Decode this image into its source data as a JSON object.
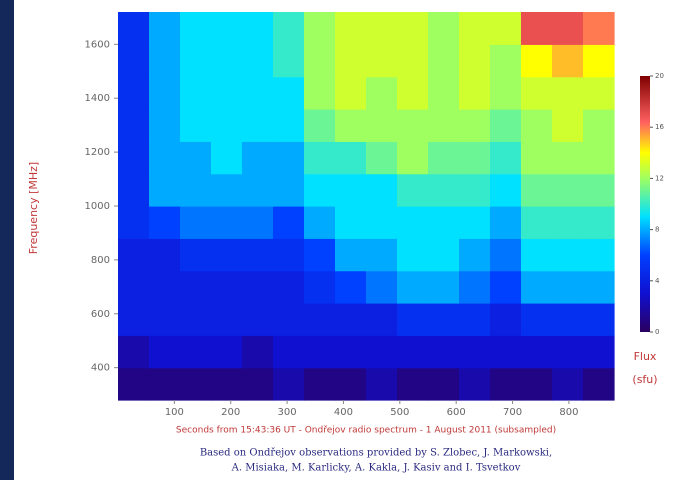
{
  "chart_data": {
    "type": "heatmap",
    "ylabel": "Frequency [MHz]",
    "xlabel": "Seconds from 15:43:36 UT  -  Ondřejov radio spectrum  -  1 August 2011 (subsampled)",
    "caption": [
      "Based on Ondřejov observations provided by S. Zlobec, J. Markowski,",
      "A. Misiaka, M. Karlicky, A. Kakla, J. Kasiv and I. Tsvetkov"
    ],
    "zlabel": [
      "Flux",
      "(sfu)"
    ],
    "x": [
      27.5,
      82.5,
      137.5,
      192.5,
      247.5,
      302.5,
      357.5,
      412.5,
      467.5,
      522.5,
      577.5,
      632.5,
      687.5,
      742.5,
      797.5,
      852.5
    ],
    "y": [
      340,
      460,
      580,
      700,
      820,
      940,
      1060,
      1180,
      1300,
      1420,
      1540,
      1660
    ],
    "z": [
      [
        1,
        1,
        1,
        1,
        1,
        2,
        1,
        1,
        2,
        1,
        1,
        2,
        1,
        1,
        2,
        1
      ],
      [
        2,
        3,
        3,
        3,
        2,
        3,
        3,
        3,
        3,
        3,
        3,
        3,
        3,
        3,
        3,
        3
      ],
      [
        4,
        4,
        4,
        4,
        4,
        4,
        4,
        4,
        4,
        5,
        5,
        5,
        4,
        5,
        5,
        5
      ],
      [
        4,
        4,
        4,
        4,
        4,
        4,
        5,
        6,
        7,
        8,
        8,
        7,
        6,
        8,
        8,
        8
      ],
      [
        4,
        4,
        5,
        5,
        5,
        5,
        6,
        8,
        8,
        9,
        9,
        8,
        7,
        9,
        9,
        9
      ],
      [
        5,
        6,
        7,
        7,
        7,
        6,
        8,
        9,
        9,
        9,
        9,
        9,
        8,
        10,
        10,
        10
      ],
      [
        5,
        8,
        8,
        8,
        8,
        8,
        9,
        9,
        9,
        10,
        10,
        10,
        9,
        11,
        11,
        11
      ],
      [
        5,
        8,
        8,
        9,
        8,
        8,
        10,
        10,
        11,
        12,
        11,
        11,
        10,
        12,
        12,
        12
      ],
      [
        5,
        8,
        9,
        9,
        9,
        9,
        11,
        12,
        12,
        12,
        12,
        12,
        11,
        12,
        13,
        12
      ],
      [
        5,
        8,
        9,
        9,
        9,
        9,
        12,
        13,
        12,
        13,
        12,
        13,
        12,
        13,
        13,
        13
      ],
      [
        5,
        8,
        9,
        9,
        9,
        10,
        12,
        13,
        13,
        13,
        12,
        13,
        12,
        14,
        15,
        14
      ],
      [
        5,
        8,
        9,
        9,
        9,
        10,
        12,
        13,
        13,
        13,
        12,
        13,
        13,
        17,
        17,
        16
      ]
    ],
    "xlim": [
      0,
      880
    ],
    "ylim": [
      280,
      1720
    ],
    "zlim": [
      0,
      20
    ],
    "xticks": [
      100,
      200,
      300,
      400,
      500,
      600,
      700,
      800
    ],
    "yticks": [
      400,
      600,
      800,
      1000,
      1200,
      1400,
      1600
    ],
    "zticks": [
      0,
      4,
      8,
      12,
      16,
      20
    ],
    "colorscale": [
      [
        0,
        "#2a0060"
      ],
      [
        0.15,
        "#1010d0"
      ],
      [
        0.3,
        "#0040ff"
      ],
      [
        0.45,
        "#00e0ff"
      ],
      [
        0.6,
        "#a0ff60"
      ],
      [
        0.7,
        "#ffff00"
      ],
      [
        0.82,
        "#ff6060"
      ],
      [
        1,
        "#800000"
      ]
    ]
  }
}
